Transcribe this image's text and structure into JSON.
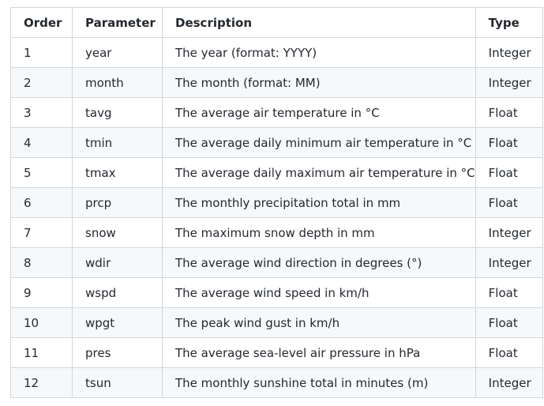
{
  "table": {
    "headers": [
      "Order",
      "Parameter",
      "Description",
      "Type"
    ],
    "rows": [
      [
        "1",
        "year",
        "The year (format: YYYY)",
        "Integer"
      ],
      [
        "2",
        "month",
        "The month (format: MM)",
        "Integer"
      ],
      [
        "3",
        "tavg",
        "The average air temperature in °C",
        "Float"
      ],
      [
        "4",
        "tmin",
        "The average daily minimum air temperature in °C",
        "Float"
      ],
      [
        "5",
        "tmax",
        "The average daily maximum air temperature in °C",
        "Float"
      ],
      [
        "6",
        "prcp",
        "The monthly precipitation total in mm",
        "Float"
      ],
      [
        "7",
        "snow",
        "The maximum snow depth in mm",
        "Integer"
      ],
      [
        "8",
        "wdir",
        "The average wind direction in degrees (°)",
        "Integer"
      ],
      [
        "9",
        "wspd",
        "The average wind speed in km/h",
        "Float"
      ],
      [
        "10",
        "wpgt",
        "The peak wind gust in km/h",
        "Float"
      ],
      [
        "11",
        "pres",
        "The average sea-level air pressure in hPa",
        "Float"
      ],
      [
        "12",
        "tsun",
        "The monthly sunshine total in minutes (m)",
        "Integer"
      ]
    ]
  }
}
